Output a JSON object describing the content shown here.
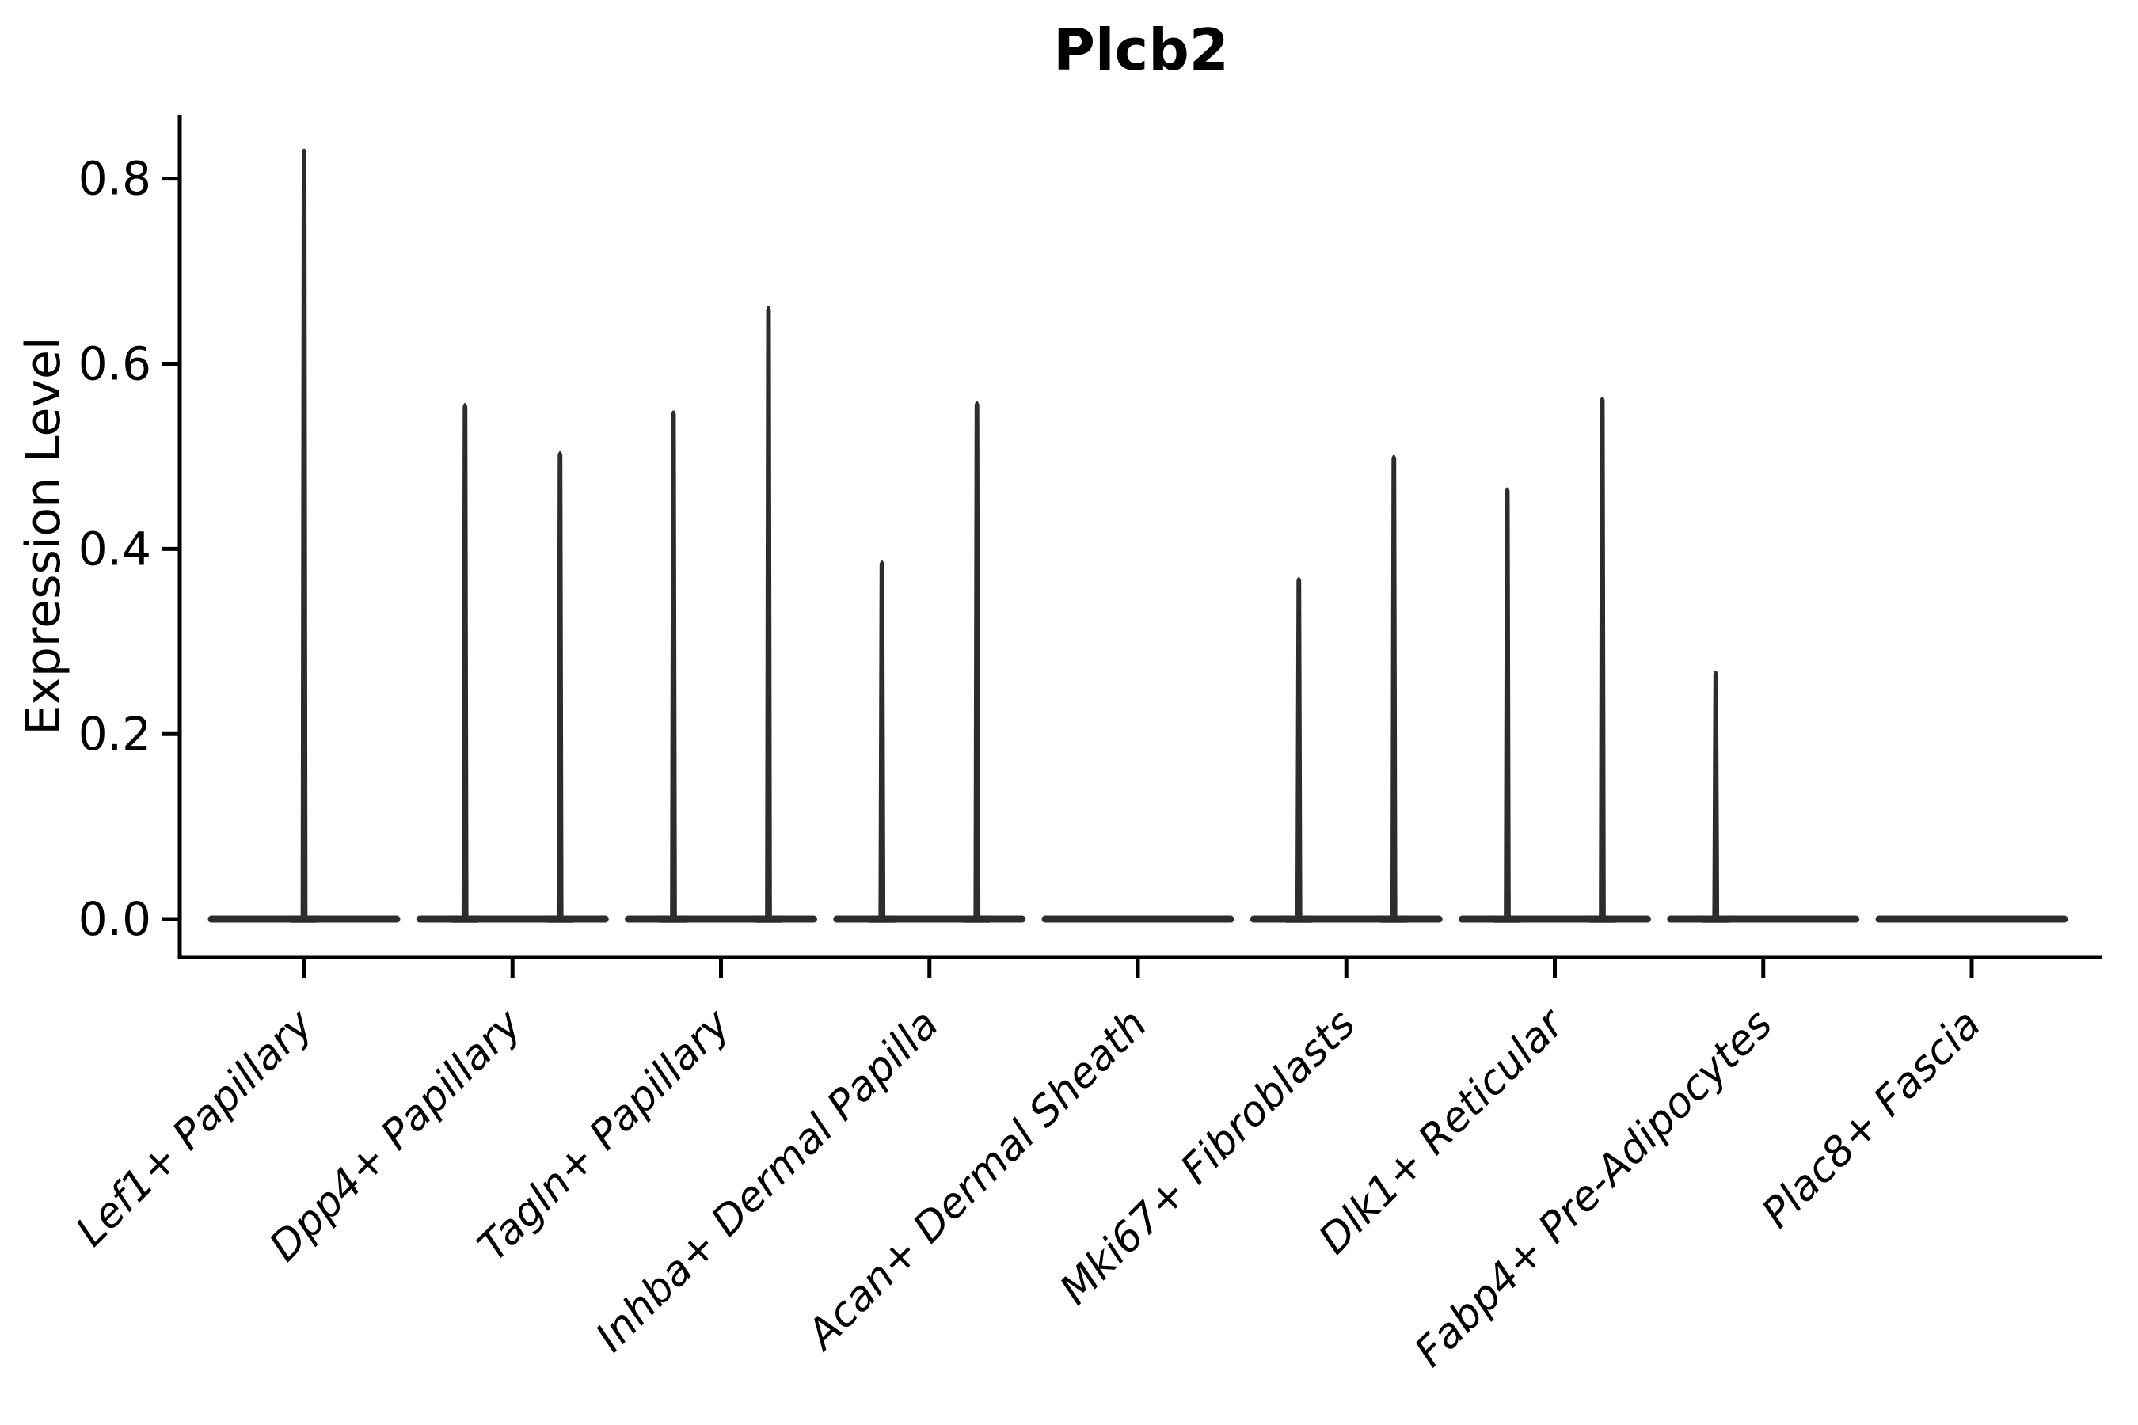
{
  "figure": {
    "title": "Plcb2"
  },
  "chart_data": {
    "type": "violin",
    "title": "Plcb2",
    "xlabel": "",
    "ylabel": "Expression Level",
    "grid": false,
    "legend": "none",
    "ylim": [
      -0.041,
      0.869
    ],
    "yticks": [
      0.0,
      0.2,
      0.4,
      0.6,
      0.8
    ],
    "ytick_labels": [
      "0.0",
      "0.2",
      "0.4",
      "0.6",
      "0.8"
    ],
    "baseline_value": 0.0,
    "description": "Expression of Plcb2 across fibroblast subpopulations; nearly all cells at 0 giving flat violin bodies with thin spikes up to the max expressing cell.",
    "categories": [
      "Lef1+ Papillary",
      "Dpp4+ Papillary",
      "Tagln+ Papillary",
      "Inhba+ Dermal Papilla",
      "Acan+ Dermal Sheath",
      "Mki67+ Fibroblasts",
      "Dlk1+ Reticular",
      "Fabp4+ Pre-Adipocytes",
      "Plac8+ Fascia"
    ],
    "violins": [
      {
        "category": "Lef1+ Papillary",
        "spikes": [
          {
            "position": "center",
            "max_value": 0.832
          }
        ]
      },
      {
        "category": "Dpp4+ Papillary",
        "spikes": [
          {
            "position": "left",
            "max_value": 0.557
          },
          {
            "position": "right",
            "max_value": 0.505
          }
        ]
      },
      {
        "category": "Tagln+ Papillary",
        "spikes": [
          {
            "position": "left",
            "max_value": 0.549
          },
          {
            "position": "right",
            "max_value": 0.662
          }
        ]
      },
      {
        "category": "Inhba+ Dermal Papilla",
        "spikes": [
          {
            "position": "left",
            "max_value": 0.387
          },
          {
            "position": "right",
            "max_value": 0.559
          }
        ]
      },
      {
        "category": "Acan+ Dermal Sheath",
        "spikes": []
      },
      {
        "category": "Mki67+ Fibroblasts",
        "spikes": [
          {
            "position": "left",
            "max_value": 0.369
          },
          {
            "position": "right",
            "max_value": 0.501
          }
        ]
      },
      {
        "category": "Dlk1+ Reticular",
        "spikes": [
          {
            "position": "left",
            "max_value": 0.466
          },
          {
            "position": "right",
            "max_value": 0.564
          }
        ]
      },
      {
        "category": "Fabp4+ Pre-Adipocytes",
        "spikes": [
          {
            "position": "left",
            "max_value": 0.268
          }
        ]
      },
      {
        "category": "Plac8+ Fascia",
        "spikes": []
      }
    ],
    "colors": {
      "violin": "#2d2d2d",
      "axis": "#000000",
      "background": "#ffffff"
    }
  }
}
